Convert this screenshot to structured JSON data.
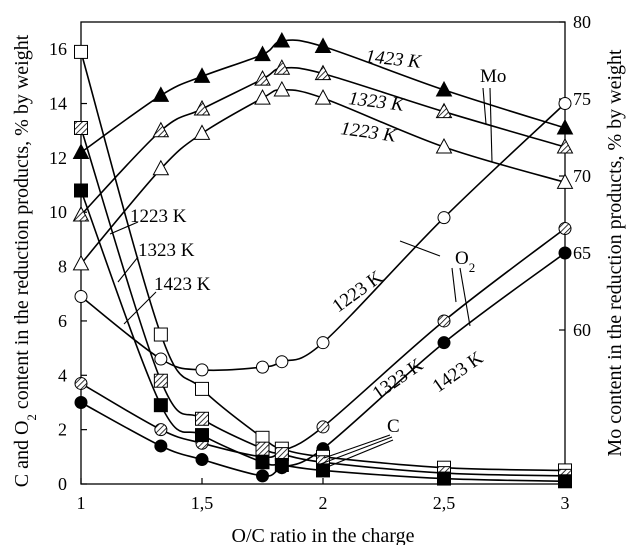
{
  "chart_data": {
    "type": "scatter",
    "xlabel": "O/C ratio in the charge",
    "ylabel_left_main": "C and O",
    "ylabel_left_sub": "2",
    "ylabel_left_rest": " content in the reduction products, % by weight",
    "ylabel_right": "Mo content in the reduction products, % by weight",
    "xlim": [
      1,
      3
    ],
    "ylim_left": [
      0,
      17
    ],
    "ylim_right": [
      50,
      80
    ],
    "x_ticks": [
      1,
      1.5,
      2,
      2.5,
      3
    ],
    "x_tick_labels": [
      "1",
      "1,5",
      "2",
      "2,5",
      "3"
    ],
    "y_left_ticks": [
      0,
      2,
      4,
      6,
      8,
      10,
      12,
      14,
      16
    ],
    "y_right_ticks": [
      60,
      65,
      70,
      75,
      80
    ],
    "grid": false,
    "series": [
      {
        "group": "Mo",
        "temperature": "1423 K",
        "marker": "triangle",
        "fill": "black",
        "axis": "left",
        "x": [
          1,
          1.33,
          1.5,
          1.75,
          1.83,
          2,
          2.5,
          3
        ],
        "y": [
          12.2,
          14.3,
          15.0,
          15.8,
          16.3,
          16.1,
          14.5,
          13.1
        ]
      },
      {
        "group": "Mo",
        "temperature": "1323 K",
        "marker": "triangle",
        "fill": "hatched",
        "axis": "left",
        "x": [
          1,
          1.33,
          1.5,
          1.75,
          1.83,
          2,
          2.5,
          3
        ],
        "y": [
          9.9,
          13.0,
          13.8,
          14.9,
          15.3,
          15.1,
          13.7,
          12.4
        ]
      },
      {
        "group": "Mo",
        "temperature": "1223 K",
        "marker": "triangle",
        "fill": "white",
        "axis": "left",
        "x": [
          1,
          1.33,
          1.5,
          1.75,
          1.83,
          2,
          2.5,
          3
        ],
        "y": [
          8.1,
          11.6,
          12.9,
          14.2,
          14.5,
          14.2,
          12.4,
          11.1
        ]
      },
      {
        "group": "O2",
        "temperature": "1223 K",
        "marker": "circle",
        "fill": "white",
        "axis": "left",
        "x": [
          1,
          1.33,
          1.5,
          1.75,
          1.83,
          2,
          2.5,
          3
        ],
        "y": [
          6.9,
          4.6,
          4.2,
          4.3,
          4.5,
          5.2,
          9.8,
          14.0
        ]
      },
      {
        "group": "O2",
        "temperature": "1323 K",
        "marker": "circle",
        "fill": "hatched",
        "axis": "left",
        "x": [
          1,
          1.33,
          1.5,
          1.75,
          1.83,
          2,
          2.5,
          3
        ],
        "y": [
          3.7,
          2.0,
          1.5,
          1.0,
          1.2,
          2.1,
          6.0,
          9.4
        ]
      },
      {
        "group": "O2",
        "temperature": "1423 K",
        "marker": "circle",
        "fill": "black",
        "axis": "left",
        "x": [
          1,
          1.33,
          1.5,
          1.75,
          1.83,
          2,
          2.5,
          3
        ],
        "y": [
          3.0,
          1.4,
          0.9,
          0.3,
          0.6,
          1.3,
          5.2,
          8.5
        ]
      },
      {
        "group": "C",
        "temperature": "1223 K",
        "marker": "square",
        "fill": "white",
        "axis": "left",
        "x": [
          1,
          1.33,
          1.5,
          1.75,
          1.83,
          2,
          2.5,
          3
        ],
        "y": [
          15.9,
          5.5,
          3.5,
          1.7,
          1.3,
          1.0,
          0.6,
          0.5
        ]
      },
      {
        "group": "C",
        "temperature": "1323 K",
        "marker": "square",
        "fill": "hatched",
        "axis": "left",
        "x": [
          1,
          1.33,
          1.5,
          1.75,
          1.83,
          2,
          2.5,
          3
        ],
        "y": [
          13.1,
          3.8,
          2.4,
          1.3,
          1.1,
          0.8,
          0.4,
          0.3
        ]
      },
      {
        "group": "C",
        "temperature": "1423 K",
        "marker": "square",
        "fill": "black",
        "axis": "left",
        "x": [
          1,
          1.33,
          1.5,
          1.75,
          1.83,
          2,
          2.5,
          3
        ],
        "y": [
          10.8,
          2.9,
          1.8,
          0.8,
          0.7,
          0.5,
          0.2,
          0.1
        ]
      }
    ],
    "annotations": [
      {
        "text": "1423 K",
        "italic": true,
        "group": "Mo-top"
      },
      {
        "text": "1323 K",
        "italic": true,
        "group": "Mo-mid"
      },
      {
        "text": "1223 K",
        "italic": true,
        "group": "Mo-low"
      },
      {
        "text": "Mo",
        "italic": false,
        "group": "Mo-label"
      },
      {
        "text": "1223 K",
        "italic": false,
        "group": "C-1223"
      },
      {
        "text": "1323 K",
        "italic": false,
        "group": "C-1323"
      },
      {
        "text": "1423 K",
        "italic": false,
        "group": "C-1423"
      },
      {
        "text": "1223 K",
        "italic": false,
        "group": "O2-1223"
      },
      {
        "text": "1323 K",
        "italic": false,
        "group": "O2-1323"
      },
      {
        "text": "1423 K",
        "italic": false,
        "group": "O2-1423"
      },
      {
        "text": "O",
        "sub": "2",
        "italic": false,
        "group": "O2-label"
      },
      {
        "text": "C",
        "italic": false,
        "group": "C-label"
      }
    ]
  }
}
